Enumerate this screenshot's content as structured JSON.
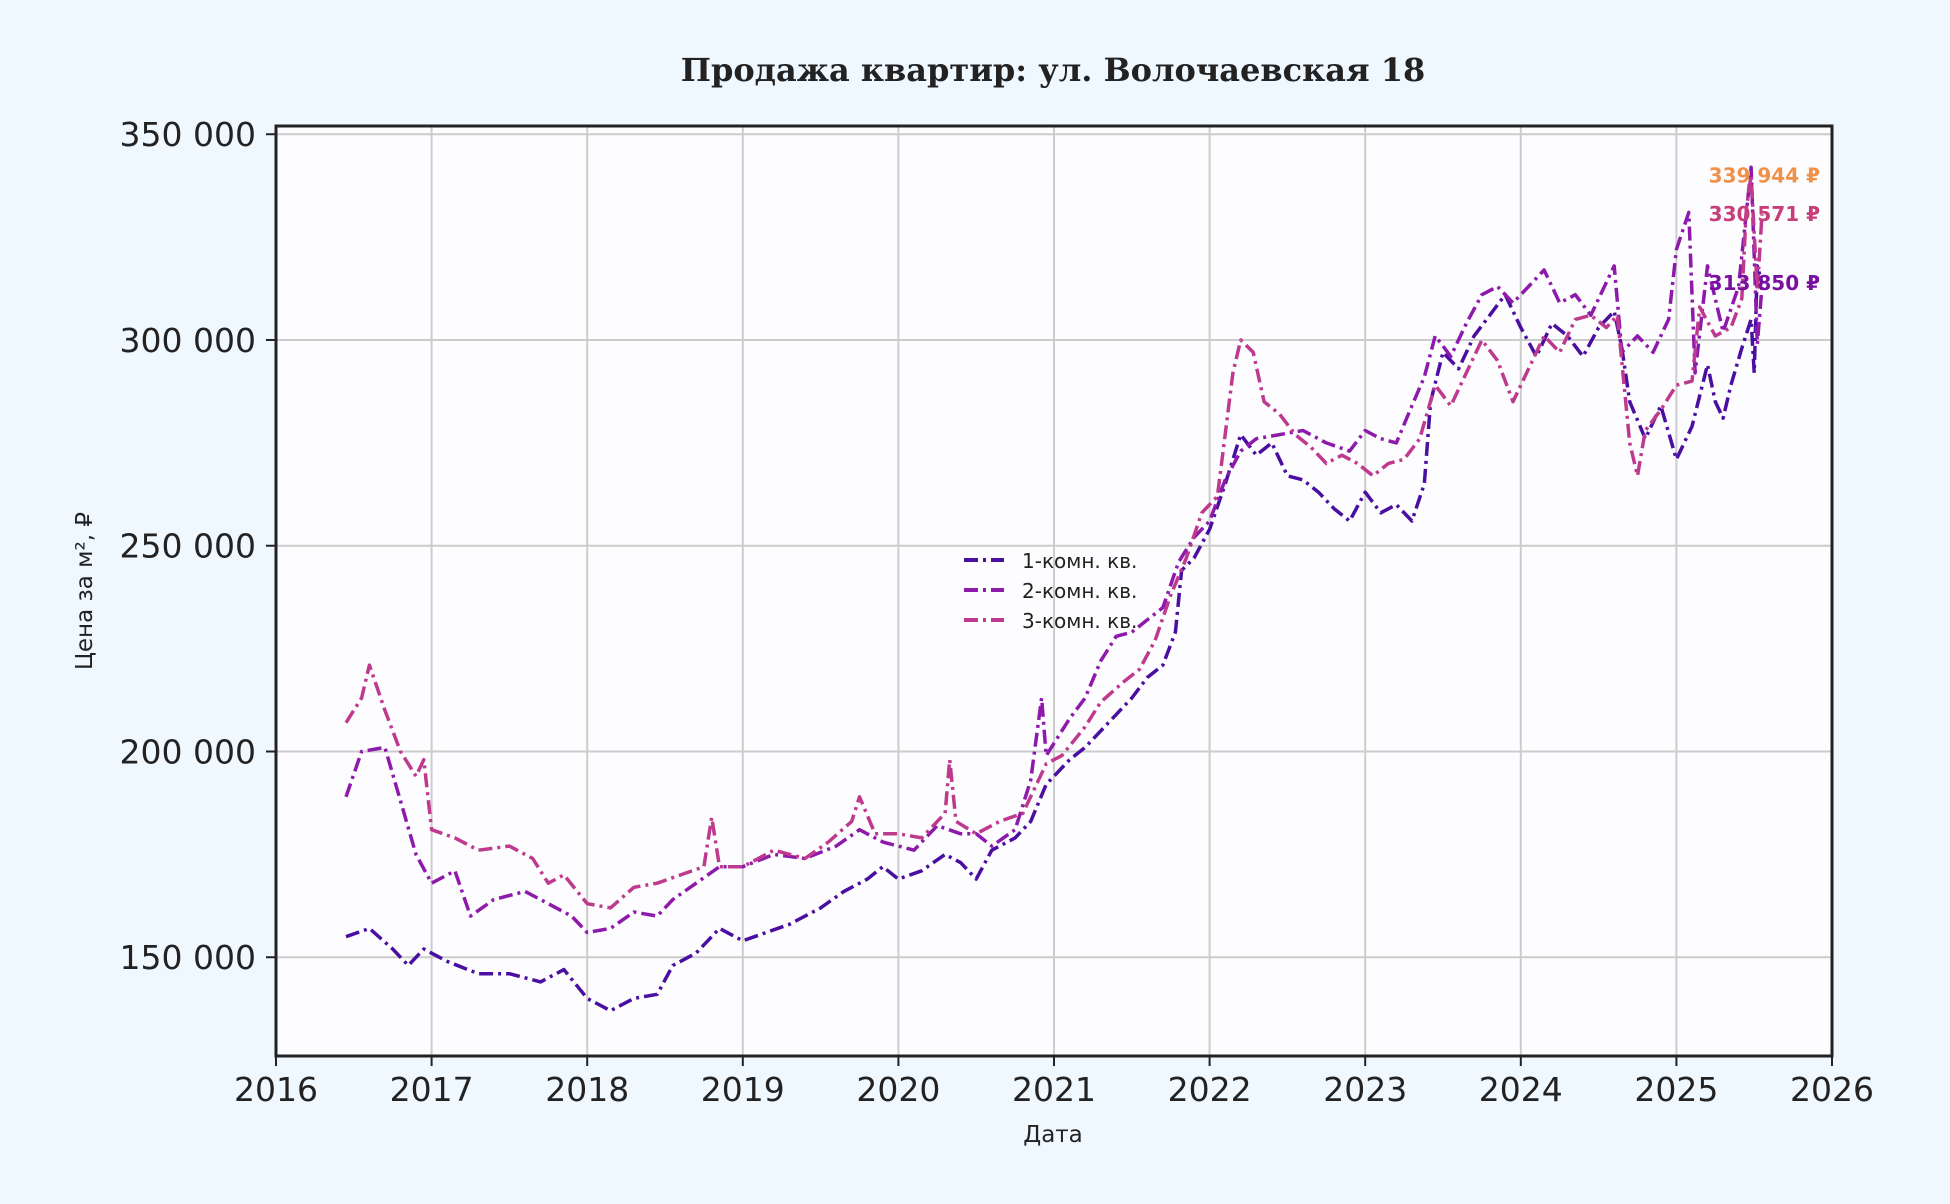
{
  "chart_data": {
    "type": "line",
    "title": "Продажа квартир: ул. Волочаевская 18",
    "xlabel": "Дата",
    "ylabel": "Цена за м², ₽",
    "xlim": [
      2016,
      2026
    ],
    "ylim": [
      126000,
      352000
    ],
    "x_ticks": [
      "2016",
      "2017",
      "2018",
      "2019",
      "2020",
      "2021",
      "2022",
      "2023",
      "2024",
      "2025",
      "2026"
    ],
    "y_ticks": [
      {
        "value": 150000,
        "label": "150 000"
      },
      {
        "value": 200000,
        "label": "200 000"
      },
      {
        "value": 250000,
        "label": "250 000"
      },
      {
        "value": 300000,
        "label": "300 000"
      },
      {
        "value": 350000,
        "label": "350 000"
      }
    ],
    "grid": true,
    "legend_position": "center",
    "colors": {
      "background": "#f0f8ff",
      "plot_bg": "#fdfdff",
      "grid": "#cccccc",
      "frame": "#222222"
    },
    "series": [
      {
        "name": "1-комн. кв.",
        "color": "#4a0fa0",
        "points": [
          [
            2016.45,
            155000
          ],
          [
            2016.6,
            157000
          ],
          [
            2016.75,
            152000
          ],
          [
            2016.85,
            148000
          ],
          [
            2016.95,
            152000
          ],
          [
            2017.1,
            149000
          ],
          [
            2017.3,
            146000
          ],
          [
            2017.5,
            146000
          ],
          [
            2017.7,
            144000
          ],
          [
            2017.85,
            147000
          ],
          [
            2018.0,
            140000
          ],
          [
            2018.15,
            137000
          ],
          [
            2018.3,
            140000
          ],
          [
            2018.45,
            141000
          ],
          [
            2018.55,
            148000
          ],
          [
            2018.7,
            151000
          ],
          [
            2018.85,
            157000
          ],
          [
            2019.0,
            154000
          ],
          [
            2019.15,
            156000
          ],
          [
            2019.3,
            158000
          ],
          [
            2019.5,
            162000
          ],
          [
            2019.65,
            166000
          ],
          [
            2019.8,
            169000
          ],
          [
            2019.9,
            172000
          ],
          [
            2020.0,
            169000
          ],
          [
            2020.15,
            171000
          ],
          [
            2020.3,
            175000
          ],
          [
            2020.4,
            173000
          ],
          [
            2020.5,
            169000
          ],
          [
            2020.6,
            176000
          ],
          [
            2020.75,
            179000
          ],
          [
            2020.85,
            183000
          ],
          [
            2020.95,
            192000
          ],
          [
            2021.1,
            198000
          ],
          [
            2021.2,
            201000
          ],
          [
            2021.35,
            207000
          ],
          [
            2021.5,
            213000
          ],
          [
            2021.6,
            218000
          ],
          [
            2021.7,
            221000
          ],
          [
            2021.78,
            229000
          ],
          [
            2021.82,
            244000
          ],
          [
            2021.9,
            247000
          ],
          [
            2022.0,
            254000
          ],
          [
            2022.1,
            265000
          ],
          [
            2022.2,
            277000
          ],
          [
            2022.3,
            272000
          ],
          [
            2022.4,
            275000
          ],
          [
            2022.5,
            267000
          ],
          [
            2022.6,
            266000
          ],
          [
            2022.7,
            263000
          ],
          [
            2022.8,
            259000
          ],
          [
            2022.9,
            256000
          ],
          [
            2023.0,
            263000
          ],
          [
            2023.1,
            258000
          ],
          [
            2023.2,
            260000
          ],
          [
            2023.3,
            256000
          ],
          [
            2023.38,
            265000
          ],
          [
            2023.42,
            285000
          ],
          [
            2023.5,
            297000
          ],
          [
            2023.6,
            293000
          ],
          [
            2023.7,
            301000
          ],
          [
            2023.8,
            306000
          ],
          [
            2023.9,
            311000
          ],
          [
            2024.0,
            303000
          ],
          [
            2024.1,
            296000
          ],
          [
            2024.2,
            304000
          ],
          [
            2024.3,
            301000
          ],
          [
            2024.4,
            296000
          ],
          [
            2024.5,
            303000
          ],
          [
            2024.6,
            307000
          ],
          [
            2024.65,
            298000
          ],
          [
            2024.7,
            285000
          ],
          [
            2024.8,
            276000
          ],
          [
            2024.9,
            284000
          ],
          [
            2025.0,
            271000
          ],
          [
            2025.1,
            279000
          ],
          [
            2025.2,
            294000
          ],
          [
            2025.25,
            285000
          ],
          [
            2025.3,
            281000
          ],
          [
            2025.35,
            289000
          ],
          [
            2025.42,
            298000
          ],
          [
            2025.48,
            305000
          ],
          [
            2025.5,
            292000
          ],
          [
            2025.52,
            318000
          ],
          [
            2025.55,
            313850
          ]
        ]
      },
      {
        "name": "2-комн. кв.",
        "color": "#8e1aab",
        "points": [
          [
            2016.45,
            189000
          ],
          [
            2016.55,
            200000
          ],
          [
            2016.7,
            201000
          ],
          [
            2016.8,
            188000
          ],
          [
            2016.9,
            175000
          ],
          [
            2017.0,
            168000
          ],
          [
            2017.15,
            171000
          ],
          [
            2017.25,
            160000
          ],
          [
            2017.4,
            164000
          ],
          [
            2017.6,
            166000
          ],
          [
            2017.75,
            163000
          ],
          [
            2017.9,
            160000
          ],
          [
            2018.0,
            156000
          ],
          [
            2018.15,
            157000
          ],
          [
            2018.3,
            161000
          ],
          [
            2018.45,
            160000
          ],
          [
            2018.55,
            164000
          ],
          [
            2018.7,
            168000
          ],
          [
            2018.85,
            172000
          ],
          [
            2019.0,
            172000
          ],
          [
            2019.2,
            175000
          ],
          [
            2019.4,
            174000
          ],
          [
            2019.6,
            177000
          ],
          [
            2019.75,
            181000
          ],
          [
            2019.9,
            178000
          ],
          [
            2020.1,
            176000
          ],
          [
            2020.25,
            182000
          ],
          [
            2020.4,
            180000
          ],
          [
            2020.5,
            180000
          ],
          [
            2020.6,
            177000
          ],
          [
            2020.75,
            181000
          ],
          [
            2020.85,
            193000
          ],
          [
            2020.92,
            213000
          ],
          [
            2020.95,
            199000
          ],
          [
            2021.1,
            208000
          ],
          [
            2021.2,
            213000
          ],
          [
            2021.3,
            222000
          ],
          [
            2021.4,
            228000
          ],
          [
            2021.5,
            229000
          ],
          [
            2021.6,
            232000
          ],
          [
            2021.7,
            235000
          ],
          [
            2021.8,
            246000
          ],
          [
            2021.9,
            252000
          ],
          [
            2022.0,
            256000
          ],
          [
            2022.1,
            266000
          ],
          [
            2022.2,
            273000
          ],
          [
            2022.3,
            276000
          ],
          [
            2022.45,
            277000
          ],
          [
            2022.6,
            278000
          ],
          [
            2022.75,
            275000
          ],
          [
            2022.9,
            273000
          ],
          [
            2023.0,
            278000
          ],
          [
            2023.1,
            276000
          ],
          [
            2023.2,
            275000
          ],
          [
            2023.3,
            284000
          ],
          [
            2023.38,
            291000
          ],
          [
            2023.45,
            301000
          ],
          [
            2023.55,
            296000
          ],
          [
            2023.65,
            304000
          ],
          [
            2023.75,
            311000
          ],
          [
            2023.85,
            313000
          ],
          [
            2023.95,
            309000
          ],
          [
            2024.05,
            313000
          ],
          [
            2024.15,
            317000
          ],
          [
            2024.25,
            309000
          ],
          [
            2024.35,
            311000
          ],
          [
            2024.45,
            306000
          ],
          [
            2024.55,
            314000
          ],
          [
            2024.6,
            318000
          ],
          [
            2024.65,
            297000
          ],
          [
            2024.75,
            301000
          ],
          [
            2024.85,
            297000
          ],
          [
            2024.95,
            305000
          ],
          [
            2025.0,
            322000
          ],
          [
            2025.08,
            331000
          ],
          [
            2025.12,
            292000
          ],
          [
            2025.2,
            318000
          ],
          [
            2025.3,
            302000
          ],
          [
            2025.4,
            313000
          ],
          [
            2025.48,
            342000
          ],
          [
            2025.52,
            299000
          ],
          [
            2025.55,
            313000
          ]
        ]
      },
      {
        "name": "3-комн. кв.",
        "color": "#be3a8e",
        "points": [
          [
            2016.45,
            207000
          ],
          [
            2016.55,
            213000
          ],
          [
            2016.6,
            221000
          ],
          [
            2016.7,
            210000
          ],
          [
            2016.8,
            200000
          ],
          [
            2016.9,
            194000
          ],
          [
            2016.95,
            198000
          ],
          [
            2017.0,
            181000
          ],
          [
            2017.15,
            179000
          ],
          [
            2017.3,
            176000
          ],
          [
            2017.5,
            177000
          ],
          [
            2017.65,
            174000
          ],
          [
            2017.75,
            168000
          ],
          [
            2017.85,
            170000
          ],
          [
            2018.0,
            163000
          ],
          [
            2018.15,
            162000
          ],
          [
            2018.3,
            167000
          ],
          [
            2018.45,
            168000
          ],
          [
            2018.6,
            170000
          ],
          [
            2018.75,
            172000
          ],
          [
            2018.8,
            184000
          ],
          [
            2018.85,
            172000
          ],
          [
            2019.0,
            172000
          ],
          [
            2019.2,
            176000
          ],
          [
            2019.4,
            174000
          ],
          [
            2019.55,
            178000
          ],
          [
            2019.7,
            183000
          ],
          [
            2019.75,
            189000
          ],
          [
            2019.85,
            180000
          ],
          [
            2020.0,
            180000
          ],
          [
            2020.15,
            179000
          ],
          [
            2020.3,
            185000
          ],
          [
            2020.33,
            198000
          ],
          [
            2020.37,
            183000
          ],
          [
            2020.5,
            180000
          ],
          [
            2020.65,
            183000
          ],
          [
            2020.8,
            185000
          ],
          [
            2020.95,
            197000
          ],
          [
            2021.05,
            199000
          ],
          [
            2021.2,
            206000
          ],
          [
            2021.3,
            212000
          ],
          [
            2021.45,
            217000
          ],
          [
            2021.55,
            220000
          ],
          [
            2021.65,
            227000
          ],
          [
            2021.75,
            238000
          ],
          [
            2021.85,
            247000
          ],
          [
            2021.95,
            258000
          ],
          [
            2022.05,
            262000
          ],
          [
            2022.15,
            292000
          ],
          [
            2022.2,
            300000
          ],
          [
            2022.28,
            297000
          ],
          [
            2022.35,
            285000
          ],
          [
            2022.45,
            282000
          ],
          [
            2022.55,
            277000
          ],
          [
            2022.65,
            274000
          ],
          [
            2022.75,
            270000
          ],
          [
            2022.85,
            272000
          ],
          [
            2022.95,
            270000
          ],
          [
            2023.05,
            267000
          ],
          [
            2023.15,
            270000
          ],
          [
            2023.25,
            271000
          ],
          [
            2023.35,
            276000
          ],
          [
            2023.45,
            289000
          ],
          [
            2023.55,
            284000
          ],
          [
            2023.65,
            292000
          ],
          [
            2023.75,
            300000
          ],
          [
            2023.85,
            295000
          ],
          [
            2023.95,
            285000
          ],
          [
            2024.05,
            293000
          ],
          [
            2024.15,
            301000
          ],
          [
            2024.25,
            297000
          ],
          [
            2024.35,
            305000
          ],
          [
            2024.45,
            306000
          ],
          [
            2024.55,
            303000
          ],
          [
            2024.62,
            306000
          ],
          [
            2024.7,
            275000
          ],
          [
            2024.75,
            267000
          ],
          [
            2024.8,
            278000
          ],
          [
            2024.9,
            283000
          ],
          [
            2025.0,
            289000
          ],
          [
            2025.1,
            290000
          ],
          [
            2025.15,
            308000
          ],
          [
            2025.25,
            301000
          ],
          [
            2025.35,
            303000
          ],
          [
            2025.42,
            310000
          ],
          [
            2025.45,
            332000
          ],
          [
            2025.48,
            340000
          ],
          [
            2025.52,
            312000
          ],
          [
            2025.55,
            330571
          ]
        ]
      }
    ],
    "end_labels": [
      {
        "text": "339 944 ₽",
        "value": 339944,
        "color": "#f0914a"
      },
      {
        "text": "330 571 ₽",
        "value": 330571,
        "color": "#c73f7a"
      },
      {
        "text": "313 850 ₽",
        "value": 313850,
        "color": "#7a10a0"
      }
    ]
  }
}
